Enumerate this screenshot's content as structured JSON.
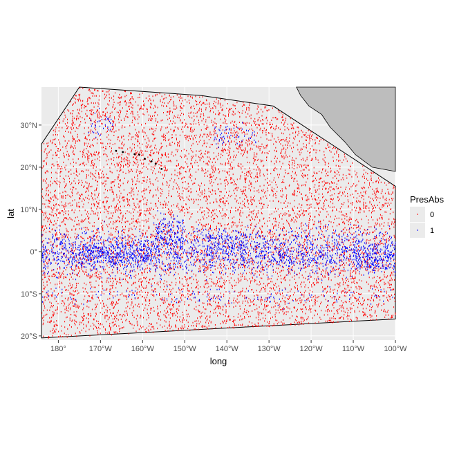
{
  "chart_data": {
    "type": "scatter",
    "title": "",
    "xlabel": "long",
    "ylabel": "lat",
    "xlim": [
      -184,
      -100
    ],
    "ylim": [
      -21,
      39
    ],
    "x_ticks": [
      {
        "value": -180,
        "label": "180°"
      },
      {
        "value": -170,
        "label": "170°W"
      },
      {
        "value": -160,
        "label": "160°W"
      },
      {
        "value": -150,
        "label": "150°W"
      },
      {
        "value": -140,
        "label": "140°W"
      },
      {
        "value": -130,
        "label": "130°W"
      },
      {
        "value": -120,
        "label": "120°W"
      },
      {
        "value": -110,
        "label": "110°W"
      },
      {
        "value": -100,
        "label": "100°W"
      }
    ],
    "y_ticks": [
      {
        "value": 30,
        "label": "30°N"
      },
      {
        "value": 20,
        "label": "20°N"
      },
      {
        "value": 10,
        "label": "10°N"
      },
      {
        "value": 0,
        "label": "0°"
      },
      {
        "value": -10,
        "label": "10°S"
      },
      {
        "value": -20,
        "label": "20°S"
      }
    ],
    "grid": true,
    "legend": {
      "title": "PresAbs",
      "placement": "right",
      "entries": [
        {
          "label": "0",
          "color": "#ff0000"
        },
        {
          "label": "1",
          "color": "#0000ff"
        }
      ]
    },
    "study_area_boundary": [
      [
        -184,
        25.5
      ],
      [
        -175,
        39
      ],
      [
        -146,
        37
      ],
      [
        -129,
        34.5
      ],
      [
        -100,
        15.5
      ],
      [
        -100,
        -16
      ],
      [
        -184,
        -20.5
      ]
    ],
    "land_polygon": [
      [
        -123.5,
        39
      ],
      [
        -100,
        39
      ],
      [
        -100,
        19
      ],
      [
        -105.5,
        20
      ],
      [
        -109.5,
        23
      ],
      [
        -112,
        26
      ],
      [
        -115.5,
        29.5
      ],
      [
        -117.5,
        32.5
      ],
      [
        -120.5,
        34.5
      ],
      [
        -122.5,
        37
      ]
    ],
    "islands": [
      [
        -155.5,
        19.6
      ],
      [
        -156.9,
        20.8
      ],
      [
        -157.9,
        21.4
      ],
      [
        -159.5,
        22
      ],
      [
        -160.8,
        23
      ],
      [
        -161.9,
        23.1
      ],
      [
        -164.7,
        23.6
      ],
      [
        -166.3,
        23.9
      ]
    ],
    "presence_regions": [
      {
        "x": [
          -184,
          -100
        ],
        "y": [
          -6,
          6
        ],
        "density": 0.9
      },
      {
        "x": [
          -175,
          -158
        ],
        "y": [
          -4,
          3
        ],
        "density": 0.95
      },
      {
        "x": [
          -157,
          -150
        ],
        "y": [
          -1,
          10
        ],
        "density": 0.85
      },
      {
        "x": [
          -145,
          -135
        ],
        "y": [
          -1,
          6
        ],
        "density": 0.85
      },
      {
        "x": [
          -110,
          -100
        ],
        "y": [
          -5,
          2
        ],
        "density": 0.95
      },
      {
        "x": [
          -143,
          -133
        ],
        "y": [
          24,
          31
        ],
        "density": 0.35
      },
      {
        "x": [
          -173,
          -167
        ],
        "y": [
          27,
          34
        ],
        "density": 0.35
      },
      {
        "x": [
          -184,
          -100
        ],
        "y": [
          -13,
          -8
        ],
        "density": 0.15
      }
    ],
    "absence_density": "uniform",
    "point_colors": {
      "absence": "#ff0000",
      "presence": "#0000ff"
    },
    "panel_color": "#ebebeb",
    "land_color": "#bdbdbd"
  }
}
